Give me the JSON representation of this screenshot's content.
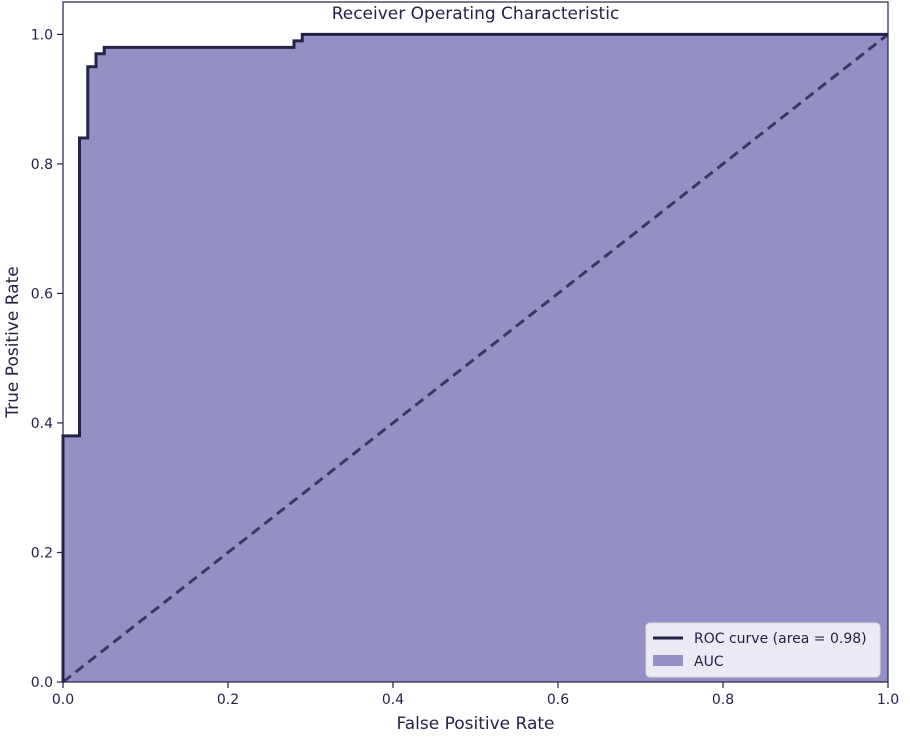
{
  "colors": {
    "roc_line": "#232347",
    "auc_fill": "#9490C5",
    "diagonal": "#3A3868",
    "text": "#232347",
    "axis": "#232347",
    "legend_border": "#D9D9D9"
  },
  "chart_data": {
    "type": "line",
    "title": "Receiver Operating Characteristic",
    "xlabel": "False Positive Rate",
    "ylabel": "True Positive Rate",
    "xlim": [
      0,
      1
    ],
    "ylim": [
      0,
      1.05
    ],
    "grid": false,
    "legend_position": "lower right",
    "x_ticks": [
      0.0,
      0.2,
      0.4,
      0.6,
      0.8,
      1.0
    ],
    "x_tick_labels": [
      "0.0",
      "0.2",
      "0.4",
      "0.6",
      "0.8",
      "1.0"
    ],
    "y_ticks": [
      0.0,
      0.2,
      0.4,
      0.6,
      0.8,
      1.0
    ],
    "y_tick_labels": [
      "0.0",
      "0.2",
      "0.4",
      "0.6",
      "0.8",
      "1.0"
    ],
    "series": [
      {
        "name": "ROC curve (area = 0.98)",
        "kind": "line",
        "x": [
          0.0,
          0.0,
          0.02,
          0.02,
          0.03,
          0.03,
          0.04,
          0.04,
          0.05,
          0.05,
          0.06,
          0.06,
          0.28,
          0.28,
          0.29,
          0.29,
          0.3,
          0.3,
          1.0
        ],
        "y": [
          0.0,
          0.38,
          0.38,
          0.84,
          0.84,
          0.95,
          0.95,
          0.97,
          0.97,
          0.98,
          0.98,
          0.98,
          0.98,
          0.99,
          0.99,
          1.0,
          1.0,
          1.0,
          1.0
        ]
      },
      {
        "name": "AUC",
        "kind": "area"
      },
      {
        "kind": "diagonal",
        "x": [
          0.0,
          1.0
        ],
        "y": [
          0.0,
          1.0
        ]
      }
    ]
  }
}
